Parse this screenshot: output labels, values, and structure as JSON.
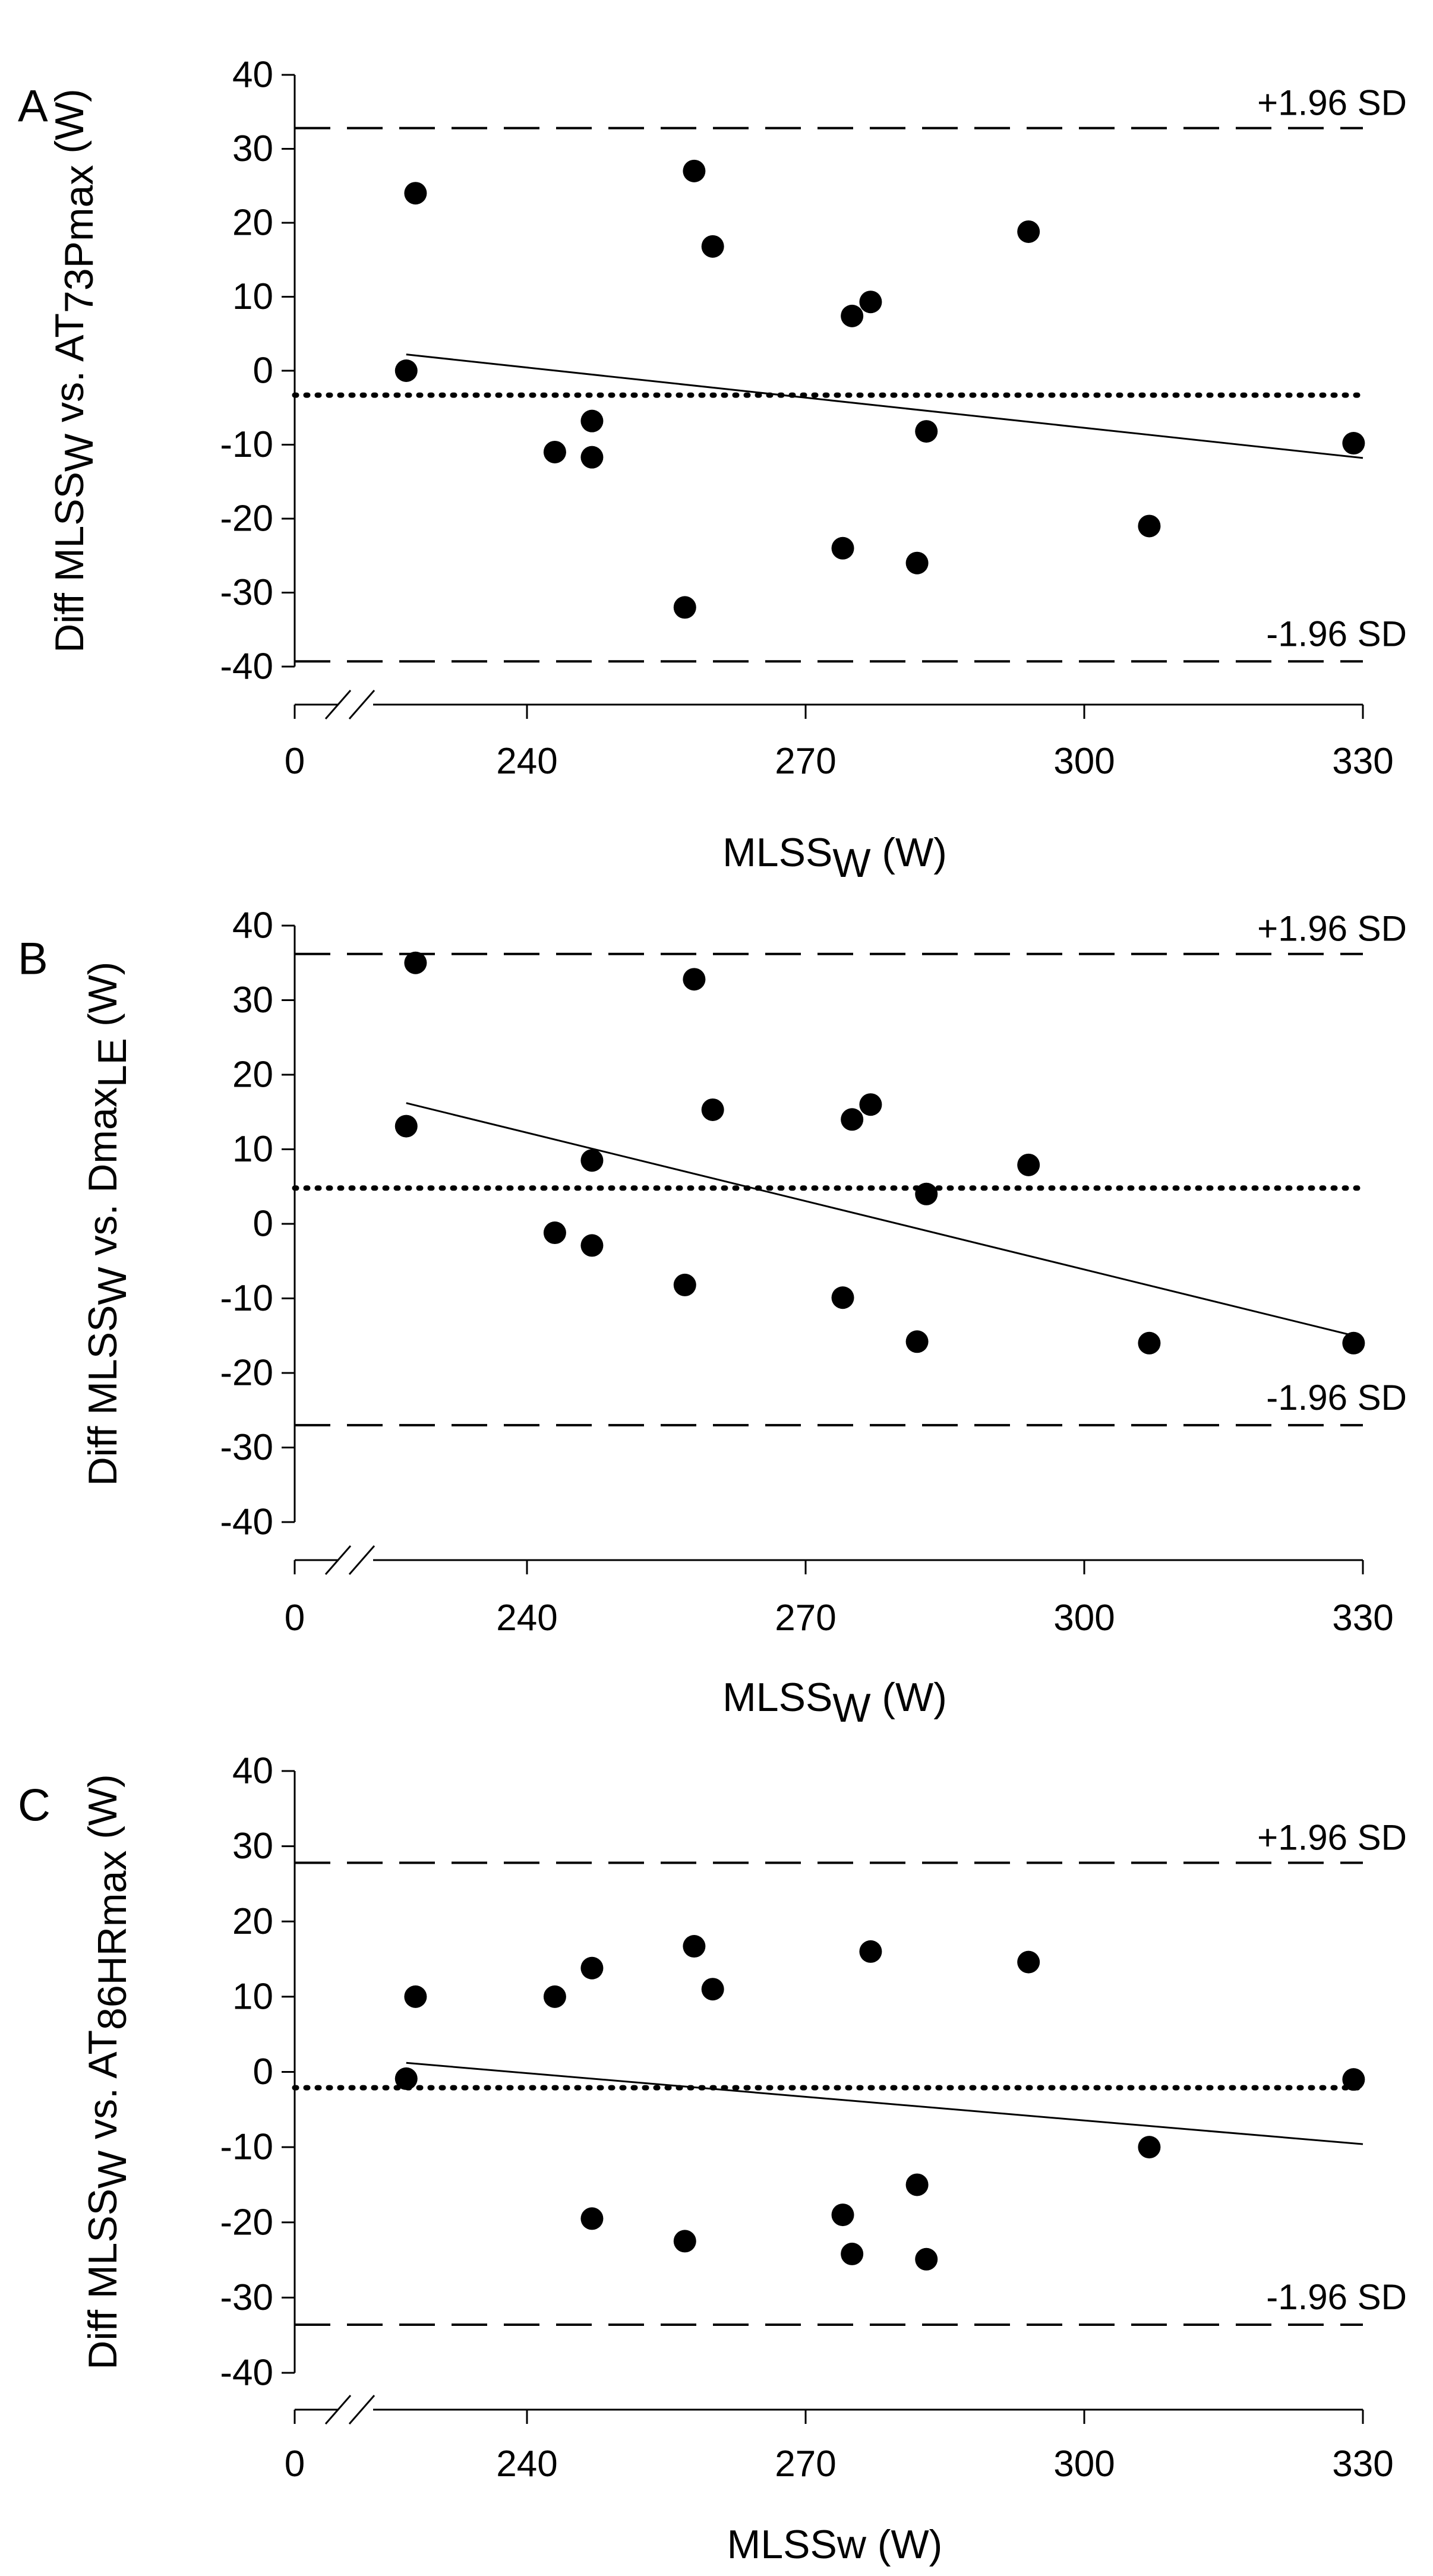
{
  "chart_data": [
    {
      "type": "scatter",
      "panel_label": "A",
      "title": "",
      "ylabel": {
        "main": "Diff MLSS",
        "main_sub": "W",
        "middle": " vs.  AT",
        "suffix_sub": "73Pmax",
        "unit": " (W)"
      },
      "xlabel": {
        "main": "MLSS",
        "sub": "W",
        "unit": " (W)"
      },
      "ylim": [
        -40,
        40
      ],
      "yticks": [
        40,
        30,
        20,
        10,
        0,
        -10,
        -20,
        -30,
        -40
      ],
      "xlim": [
        218,
        330
      ],
      "xticks": [
        0,
        240,
        270,
        300,
        330
      ],
      "x_break": true,
      "mean_bias": -3.3,
      "upper_loa": {
        "value": 32.8,
        "label": "+1.96 SD"
      },
      "lower_loa": {
        "value": -39.3,
        "label": "-1.96 SD"
      },
      "regression": {
        "x": [
          227,
          330
        ],
        "y": [
          2.2,
          -11.8
        ]
      },
      "points": [
        {
          "x": 227,
          "y": 0
        },
        {
          "x": 228,
          "y": 24
        },
        {
          "x": 243,
          "y": -11
        },
        {
          "x": 247,
          "y": -6.8
        },
        {
          "x": 247,
          "y": -11.7
        },
        {
          "x": 257,
          "y": -32
        },
        {
          "x": 258,
          "y": 27
        },
        {
          "x": 260,
          "y": 16.8
        },
        {
          "x": 274,
          "y": -24
        },
        {
          "x": 275,
          "y": 7.4
        },
        {
          "x": 277,
          "y": 9.3
        },
        {
          "x": 282,
          "y": -26
        },
        {
          "x": 283,
          "y": -8.2
        },
        {
          "x": 294,
          "y": 18.8
        },
        {
          "x": 307,
          "y": -21
        },
        {
          "x": 329,
          "y": -9.8
        }
      ]
    },
    {
      "type": "scatter",
      "panel_label": "B",
      "title": "",
      "ylabel": {
        "main": "Diff MLSS",
        "main_sub": "W",
        "middle": " vs. Dmax",
        "suffix_sub": "LE",
        "unit": " (W)"
      },
      "xlabel": {
        "main": "MLSS",
        "sub": "W",
        "unit": " (W)"
      },
      "ylim": [
        -40,
        40
      ],
      "yticks": [
        40,
        30,
        20,
        10,
        0,
        -10,
        -20,
        -30,
        -40
      ],
      "xlim": [
        218,
        330
      ],
      "xticks": [
        0,
        240,
        270,
        300,
        330
      ],
      "x_break": true,
      "mean_bias": 4.8,
      "upper_loa": {
        "value": 36.2,
        "label": "+1.96 SD"
      },
      "lower_loa": {
        "value": -27,
        "label": "-1.96 SD"
      },
      "regression": {
        "x": [
          227,
          330
        ],
        "y": [
          16.2,
          -15.3
        ]
      },
      "points": [
        {
          "x": 227,
          "y": 13.1
        },
        {
          "x": 228,
          "y": 35
        },
        {
          "x": 243,
          "y": -1.2
        },
        {
          "x": 247,
          "y": 8.5
        },
        {
          "x": 247,
          "y": -2.9
        },
        {
          "x": 257,
          "y": -8.2
        },
        {
          "x": 258,
          "y": 32.8
        },
        {
          "x": 260,
          "y": 15.3
        },
        {
          "x": 274,
          "y": -9.9
        },
        {
          "x": 275,
          "y": 14
        },
        {
          "x": 277,
          "y": 16
        },
        {
          "x": 282,
          "y": -15.8
        },
        {
          "x": 283,
          "y": 4
        },
        {
          "x": 294,
          "y": 7.9
        },
        {
          "x": 307,
          "y": -16
        },
        {
          "x": 329,
          "y": -16
        }
      ]
    },
    {
      "type": "scatter",
      "panel_label": "C",
      "title": "",
      "ylabel": {
        "main": "Diff MLSS",
        "main_sub": "W",
        "middle": " vs. AT",
        "suffix_sub": "86HRmax",
        "unit": " (W)"
      },
      "xlabel": {
        "main": "MLSSw",
        "sub": "",
        "unit": " (W)"
      },
      "ylim": [
        -40,
        40
      ],
      "yticks": [
        40,
        30,
        20,
        10,
        0,
        -10,
        -20,
        -30,
        -40
      ],
      "xlim": [
        218,
        330
      ],
      "xticks": [
        0,
        240,
        270,
        300,
        330
      ],
      "x_break": true,
      "mean_bias": -2.1,
      "upper_loa": {
        "value": 27.8,
        "label": "+1.96 SD"
      },
      "lower_loa": {
        "value": -33.6,
        "label": "-1.96 SD"
      },
      "regression": {
        "x": [
          227,
          330
        ],
        "y": [
          1.2,
          -9.6
        ]
      },
      "points": [
        {
          "x": 227,
          "y": -0.9
        },
        {
          "x": 228,
          "y": 10
        },
        {
          "x": 243,
          "y": 10
        },
        {
          "x": 247,
          "y": 13.8
        },
        {
          "x": 247,
          "y": -19.5
        },
        {
          "x": 257,
          "y": -22.5
        },
        {
          "x": 258,
          "y": 16.7
        },
        {
          "x": 260,
          "y": 11
        },
        {
          "x": 274,
          "y": -19
        },
        {
          "x": 275,
          "y": -24.2
        },
        {
          "x": 277,
          "y": 16
        },
        {
          "x": 282,
          "y": -15
        },
        {
          "x": 283,
          "y": -24.9
        },
        {
          "x": 294,
          "y": 14.6
        },
        {
          "x": 307,
          "y": -10
        },
        {
          "x": 329,
          "y": -1
        }
      ]
    }
  ]
}
